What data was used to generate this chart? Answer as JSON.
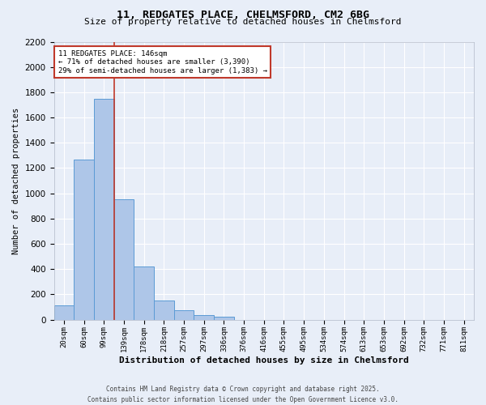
{
  "title_line1": "11, REDGATES PLACE, CHELMSFORD, CM2 6BG",
  "title_line2": "Size of property relative to detached houses in Chelmsford",
  "xlabel": "Distribution of detached houses by size in Chelmsford",
  "ylabel": "Number of detached properties",
  "categories": [
    "20sqm",
    "60sqm",
    "99sqm",
    "139sqm",
    "178sqm",
    "218sqm",
    "257sqm",
    "297sqm",
    "336sqm",
    "376sqm",
    "416sqm",
    "455sqm",
    "495sqm",
    "534sqm",
    "574sqm",
    "613sqm",
    "653sqm",
    "692sqm",
    "732sqm",
    "771sqm",
    "811sqm"
  ],
  "values": [
    110,
    1270,
    1750,
    950,
    420,
    150,
    75,
    38,
    20,
    0,
    0,
    0,
    0,
    0,
    0,
    0,
    0,
    0,
    0,
    0,
    0
  ],
  "bar_color": "#aec6e8",
  "bar_edge_color": "#5b9bd5",
  "vline_color": "#c0392b",
  "vline_pos": 2.5,
  "annotation_text": "11 REDGATES PLACE: 146sqm\n← 71% of detached houses are smaller (3,390)\n29% of semi-detached houses are larger (1,383) →",
  "annotation_box_color": "#c0392b",
  "ylim": [
    0,
    2200
  ],
  "yticks": [
    0,
    200,
    400,
    600,
    800,
    1000,
    1200,
    1400,
    1600,
    1800,
    2000,
    2200
  ],
  "footer_line1": "Contains HM Land Registry data © Crown copyright and database right 2025.",
  "footer_line2": "Contains public sector information licensed under the Open Government Licence v3.0.",
  "bg_color": "#e8eef8",
  "plot_bg_color": "#e8eef8",
  "grid_color": "#ffffff",
  "title_fontsize": 9.5,
  "subtitle_fontsize": 8,
  "xlabel_fontsize": 8,
  "ylabel_fontsize": 7.5,
  "tick_fontsize": 6.5,
  "ytick_fontsize": 7.5,
  "annotation_fontsize": 6.5,
  "footer_fontsize": 5.5
}
